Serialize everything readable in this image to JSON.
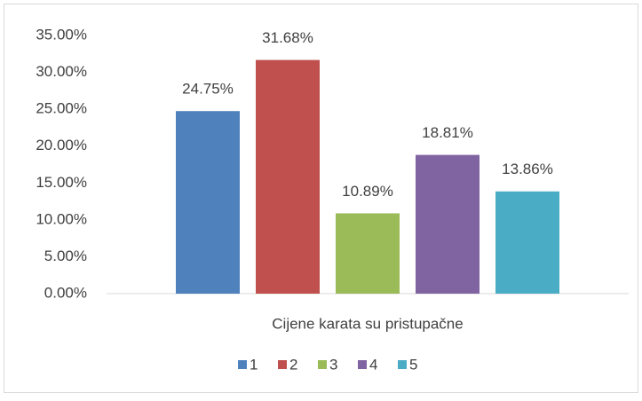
{
  "chart_data": {
    "type": "bar",
    "categories": [
      "Cijene karata su pristupačne"
    ],
    "series": [
      {
        "name": "1",
        "color": "#4f81bd",
        "values": [
          24.75
        ],
        "value_labels": [
          "24.75%"
        ]
      },
      {
        "name": "2",
        "color": "#c0504d",
        "values": [
          31.68
        ],
        "value_labels": [
          "31.68%"
        ]
      },
      {
        "name": "3",
        "color": "#9bbb59",
        "values": [
          10.89
        ],
        "value_labels": [
          "10.89%"
        ]
      },
      {
        "name": "4",
        "color": "#8064a2",
        "values": [
          18.81
        ],
        "value_labels": [
          "18.81%"
        ]
      },
      {
        "name": "5",
        "color": "#4bacc6",
        "values": [
          13.86
        ],
        "value_labels": [
          "13.86%"
        ]
      }
    ],
    "ylim": [
      0,
      35
    ],
    "yticks": [
      {
        "value": 0,
        "label": "0.00%"
      },
      {
        "value": 5,
        "label": "5.00%"
      },
      {
        "value": 10,
        "label": "10.00%"
      },
      {
        "value": 15,
        "label": "15.00%"
      },
      {
        "value": 20,
        "label": "20.00%"
      },
      {
        "value": 25,
        "label": "25.00%"
      },
      {
        "value": 30,
        "label": "30.00%"
      },
      {
        "value": 35,
        "label": "35.00%"
      }
    ],
    "grid": false,
    "legend": "bottom"
  }
}
